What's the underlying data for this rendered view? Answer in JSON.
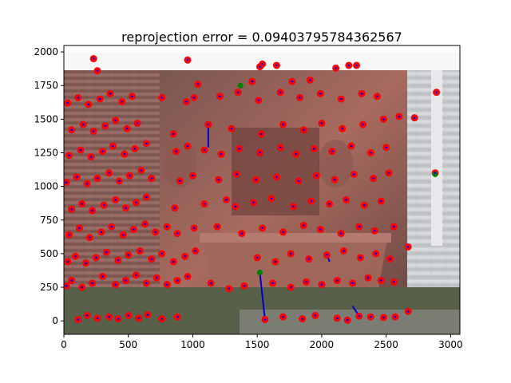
{
  "chart_data": {
    "type": "scatter",
    "title": "reprojection error = 0.09403795784362567",
    "xlabel": "",
    "ylabel": "",
    "xlim": [
      0,
      3072
    ],
    "ylim": [
      2048,
      -100
    ],
    "y_inverted": true,
    "x_ticks": [
      0,
      500,
      1000,
      1500,
      2000,
      2500,
      3000
    ],
    "y_ticks": [
      0,
      250,
      500,
      750,
      1000,
      1250,
      1500,
      1750,
      2000
    ],
    "x_tick_labels": [
      "0",
      "500",
      "1000",
      "1500",
      "2000",
      "2500",
      "3000"
    ],
    "y_tick_labels": [
      "0",
      "250",
      "500",
      "750",
      "1000",
      "1250",
      "1500",
      "1750",
      "2000"
    ],
    "background_image": "photo of a red sandstone wall fountain with ornate carvings, basin in front, stone building wall on right, grass in foreground",
    "grid": false,
    "series": [
      {
        "kind": "detected keypoints",
        "marker": "filled circle",
        "color": "#ff0000",
        "points": [
          [
            110,
            10
          ],
          [
            180,
            40
          ],
          [
            260,
            20
          ],
          [
            350,
            30
          ],
          [
            420,
            15
          ],
          [
            500,
            40
          ],
          [
            580,
            20
          ],
          [
            650,
            45
          ],
          [
            760,
            15
          ],
          [
            880,
            30
          ],
          [
            1560,
            10
          ],
          [
            1700,
            30
          ],
          [
            1850,
            15
          ],
          [
            1950,
            40
          ],
          [
            2120,
            20
          ],
          [
            2200,
            5
          ],
          [
            2290,
            35
          ],
          [
            2380,
            30
          ],
          [
            2480,
            25
          ],
          [
            2570,
            30
          ],
          [
            2670,
            70
          ],
          [
            20,
            260
          ],
          [
            60,
            300
          ],
          [
            140,
            250
          ],
          [
            220,
            280
          ],
          [
            300,
            330
          ],
          [
            400,
            270
          ],
          [
            480,
            300
          ],
          [
            560,
            340
          ],
          [
            640,
            280
          ],
          [
            720,
            320
          ],
          [
            800,
            270
          ],
          [
            880,
            300
          ],
          [
            960,
            330
          ],
          [
            1140,
            280
          ],
          [
            1280,
            240
          ],
          [
            1400,
            260
          ],
          [
            1620,
            280
          ],
          [
            1760,
            250
          ],
          [
            1880,
            290
          ],
          [
            2000,
            270
          ],
          [
            2120,
            300
          ],
          [
            2240,
            280
          ],
          [
            2360,
            320
          ],
          [
            2460,
            300
          ],
          [
            2560,
            290
          ],
          [
            30,
            440
          ],
          [
            90,
            480
          ],
          [
            170,
            430
          ],
          [
            250,
            470
          ],
          [
            330,
            510
          ],
          [
            420,
            450
          ],
          [
            500,
            490
          ],
          [
            590,
            520
          ],
          [
            680,
            460
          ],
          [
            760,
            500
          ],
          [
            850,
            440
          ],
          [
            940,
            480
          ],
          [
            1020,
            520
          ],
          [
            1500,
            470
          ],
          [
            1640,
            440
          ],
          [
            1760,
            500
          ],
          [
            1900,
            460
          ],
          [
            2040,
            490
          ],
          [
            2170,
            520
          ],
          [
            2300,
            470
          ],
          [
            2420,
            500
          ],
          [
            2530,
            460
          ],
          [
            40,
            640
          ],
          [
            120,
            690
          ],
          [
            200,
            620
          ],
          [
            290,
            660
          ],
          [
            370,
            700
          ],
          [
            460,
            640
          ],
          [
            540,
            680
          ],
          [
            630,
            720
          ],
          [
            710,
            660
          ],
          [
            800,
            700
          ],
          [
            880,
            650
          ],
          [
            1010,
            690
          ],
          [
            1190,
            700
          ],
          [
            1380,
            650
          ],
          [
            1540,
            690
          ],
          [
            1700,
            660
          ],
          [
            1860,
            710
          ],
          [
            1990,
            680
          ],
          [
            2150,
            650
          ],
          [
            2290,
            700
          ],
          [
            2410,
            670
          ],
          [
            2560,
            700
          ],
          [
            2670,
            550
          ],
          [
            60,
            830
          ],
          [
            140,
            870
          ],
          [
            220,
            820
          ],
          [
            310,
            860
          ],
          [
            400,
            900
          ],
          [
            480,
            840
          ],
          [
            560,
            880
          ],
          [
            640,
            920
          ],
          [
            860,
            840
          ],
          [
            1090,
            870
          ],
          [
            1260,
            900
          ],
          [
            1330,
            850
          ],
          [
            1470,
            880
          ],
          [
            1610,
            910
          ],
          [
            1780,
            850
          ],
          [
            1920,
            890
          ],
          [
            2060,
            870
          ],
          [
            2190,
            900
          ],
          [
            2330,
            860
          ],
          [
            2460,
            890
          ],
          [
            20,
            1030
          ],
          [
            100,
            1070
          ],
          [
            180,
            1020
          ],
          [
            260,
            1060
          ],
          [
            350,
            1100
          ],
          [
            430,
            1040
          ],
          [
            510,
            1080
          ],
          [
            600,
            1120
          ],
          [
            680,
            1060
          ],
          [
            900,
            1040
          ],
          [
            1000,
            1080
          ],
          [
            1200,
            1050
          ],
          [
            1340,
            1090
          ],
          [
            1490,
            1050
          ],
          [
            1650,
            1070
          ],
          [
            1820,
            1040
          ],
          [
            1960,
            1080
          ],
          [
            2100,
            1050
          ],
          [
            2250,
            1090
          ],
          [
            2400,
            1060
          ],
          [
            2520,
            1100
          ],
          [
            2880,
            1100
          ],
          [
            40,
            1230
          ],
          [
            130,
            1270
          ],
          [
            210,
            1220
          ],
          [
            300,
            1260
          ],
          [
            380,
            1300
          ],
          [
            470,
            1240
          ],
          [
            550,
            1280
          ],
          [
            640,
            1320
          ],
          [
            870,
            1260
          ],
          [
            960,
            1300
          ],
          [
            1090,
            1270
          ],
          [
            1220,
            1240
          ],
          [
            1360,
            1280
          ],
          [
            1520,
            1250
          ],
          [
            1680,
            1290
          ],
          [
            1800,
            1240
          ],
          [
            1940,
            1280
          ],
          [
            2080,
            1260
          ],
          [
            2230,
            1300
          ],
          [
            2380,
            1250
          ],
          [
            2500,
            1290
          ],
          [
            60,
            1420
          ],
          [
            150,
            1460
          ],
          [
            230,
            1410
          ],
          [
            320,
            1450
          ],
          [
            400,
            1490
          ],
          [
            490,
            1430
          ],
          [
            570,
            1470
          ],
          [
            850,
            1390
          ],
          [
            1120,
            1460
          ],
          [
            1300,
            1430
          ],
          [
            1530,
            1390
          ],
          [
            1700,
            1460
          ],
          [
            1860,
            1420
          ],
          [
            2000,
            1470
          ],
          [
            2160,
            1430
          ],
          [
            2320,
            1460
          ],
          [
            2480,
            1500
          ],
          [
            2600,
            1520
          ],
          [
            2720,
            1510
          ],
          [
            30,
            1620
          ],
          [
            110,
            1660
          ],
          [
            190,
            1610
          ],
          [
            280,
            1650
          ],
          [
            360,
            1690
          ],
          [
            450,
            1630
          ],
          [
            530,
            1670
          ],
          [
            760,
            1660
          ],
          [
            950,
            1630
          ],
          [
            1010,
            1660
          ],
          [
            1210,
            1670
          ],
          [
            1350,
            1700
          ],
          [
            1510,
            1640
          ],
          [
            1680,
            1700
          ],
          [
            1830,
            1660
          ],
          [
            1990,
            1690
          ],
          [
            2150,
            1650
          ],
          [
            2310,
            1690
          ],
          [
            2430,
            1670
          ],
          [
            2890,
            1700
          ],
          [
            260,
            1860
          ],
          [
            230,
            1950
          ],
          [
            960,
            1940
          ],
          [
            1040,
            1760
          ],
          [
            1460,
            1780
          ],
          [
            1540,
            1910
          ],
          [
            1650,
            1900
          ],
          [
            1770,
            1780
          ],
          [
            1910,
            1790
          ],
          [
            2110,
            1880
          ],
          [
            2210,
            1900
          ],
          [
            2270,
            1900
          ],
          [
            1520,
            1890
          ]
        ]
      },
      {
        "kind": "reprojected points",
        "marker": "small dot",
        "color": "#0000ff"
      },
      {
        "kind": "reprojection error vectors",
        "marker": "line",
        "color": "#0000cc",
        "segments": [
          [
            [
              1560,
              10
            ],
            [
              1520,
              360
            ]
          ],
          [
            [
              2290,
              35
            ],
            [
              2240,
              110
            ]
          ],
          [
            [
              1120,
              1460
            ],
            [
              1120,
              1290
            ]
          ],
          [
            [
              2040,
              500
            ],
            [
              2060,
              440
            ]
          ]
        ]
      },
      {
        "kind": "green markers",
        "marker": "filled circle",
        "color": "#008000",
        "points": [
          [
            1520,
            360
          ],
          [
            1370,
            1750
          ],
          [
            2880,
            1090
          ]
        ]
      }
    ]
  }
}
